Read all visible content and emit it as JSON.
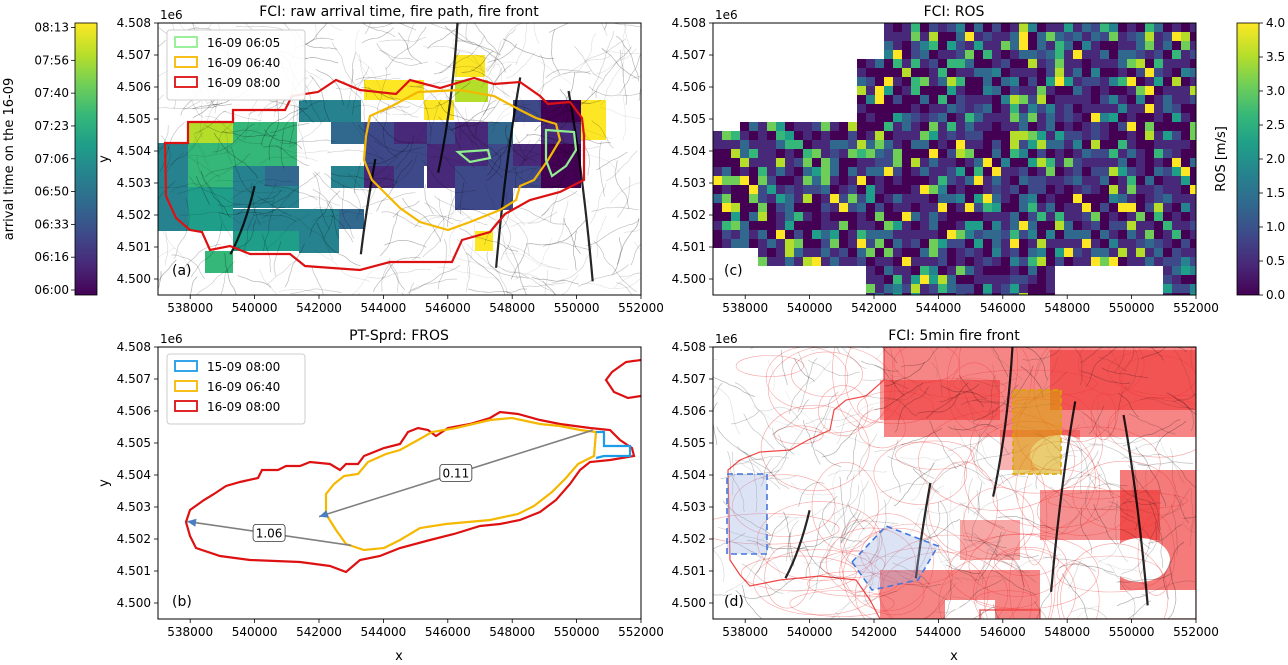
{
  "colors": {
    "viridis": [
      "#440154",
      "#482878",
      "#3e4989",
      "#31688e",
      "#26828e",
      "#1f9e89",
      "#35b779",
      "#6ece58",
      "#b5de2b",
      "#fde725"
    ],
    "front_green": "#90ee90",
    "front_yellow": "#f5b800",
    "front_red": "#dd1111",
    "front_blue": "#1e9be6",
    "arrow": "#808080",
    "contour_red": "#ee3333",
    "box_dash": "#4477dd"
  },
  "chart_data": [
    {
      "id": "a",
      "type": "heatmap",
      "title": "FCI: raw arrival time, fire path, fire front",
      "panel_label": "(a)",
      "xlabel": "",
      "ylabel": "y",
      "y_offset_label": "1e6",
      "xlim": [
        537000,
        552000
      ],
      "ylim": [
        4.4995,
        4.508
      ],
      "xticks": [
        "538000",
        "540000",
        "542000",
        "544000",
        "546000",
        "548000",
        "550000",
        "552000"
      ],
      "yticks": [
        "4.500",
        "4.501",
        "4.502",
        "4.503",
        "4.504",
        "4.505",
        "4.506",
        "4.507",
        "4.508"
      ],
      "legend": [
        {
          "label": "16-09 06:05",
          "color": "#90ee90"
        },
        {
          "label": "16-09 06:40",
          "color": "#f5b800"
        },
        {
          "label": "16-09 08:00",
          "color": "#dd1111"
        }
      ],
      "colorbar": {
        "label": "arrival time on the 16-09",
        "ticks": [
          "06:00",
          "06:16",
          "06:33",
          "06:50",
          "07:06",
          "07:23",
          "07:40",
          "07:56",
          "08:13"
        ]
      }
    },
    {
      "id": "b",
      "type": "line",
      "title": "PT-Sprd: FROS",
      "panel_label": "(b)",
      "xlabel": "x",
      "ylabel": "y",
      "y_offset_label": "1e6",
      "xlim": [
        537000,
        552000
      ],
      "ylim": [
        4.4995,
        4.508
      ],
      "xticks": [
        "538000",
        "540000",
        "542000",
        "544000",
        "546000",
        "548000",
        "550000",
        "552000"
      ],
      "yticks": [
        "4.500",
        "4.501",
        "4.502",
        "4.503",
        "4.504",
        "4.505",
        "4.506",
        "4.507",
        "4.508"
      ],
      "legend": [
        {
          "label": "15-09 08:00",
          "color": "#1e9be6"
        },
        {
          "label": "16-09 06:40",
          "color": "#f5b800"
        },
        {
          "label": "16-09 08:00",
          "color": "#dd1111"
        }
      ],
      "annotations": [
        {
          "text": "0.11",
          "from": [
            550500,
            4.5054
          ],
          "to": [
            542000,
            4.5027
          ]
        },
        {
          "text": "1.06",
          "from": [
            543000,
            4.5018
          ],
          "to": [
            537900,
            4.50255
          ]
        }
      ]
    },
    {
      "id": "c",
      "type": "heatmap",
      "title": "FCI: ROS",
      "panel_label": "(c)",
      "xlabel": "",
      "ylabel": "",
      "y_offset_label": "1e6",
      "xlim": [
        537000,
        552000
      ],
      "ylim": [
        4.4995,
        4.508
      ],
      "xticks": [
        "538000",
        "540000",
        "542000",
        "544000",
        "546000",
        "548000",
        "550000",
        "552000"
      ],
      "yticks": [
        "4.500",
        "4.501",
        "4.502",
        "4.503",
        "4.504",
        "4.505",
        "4.506",
        "4.507",
        "4.508"
      ],
      "colorbar": {
        "label": "ROS [m/s]",
        "ticks": [
          "0.0",
          "0.5",
          "1.0",
          "1.5",
          "2.0",
          "2.5",
          "3.0",
          "3.5",
          "4.0"
        ],
        "range": [
          0,
          4
        ]
      }
    },
    {
      "id": "d",
      "type": "line",
      "title": "FCI: 5min fire front",
      "panel_label": "(d)",
      "xlabel": "x",
      "ylabel": "",
      "y_offset_label": "1e6",
      "xlim": [
        537000,
        552000
      ],
      "ylim": [
        4.4995,
        4.508
      ],
      "xticks": [
        "538000",
        "540000",
        "542000",
        "544000",
        "546000",
        "548000",
        "550000",
        "552000"
      ],
      "yticks": [
        "4.500",
        "4.501",
        "4.502",
        "4.503",
        "4.504",
        "4.505",
        "4.506",
        "4.507",
        "4.508"
      ]
    }
  ]
}
